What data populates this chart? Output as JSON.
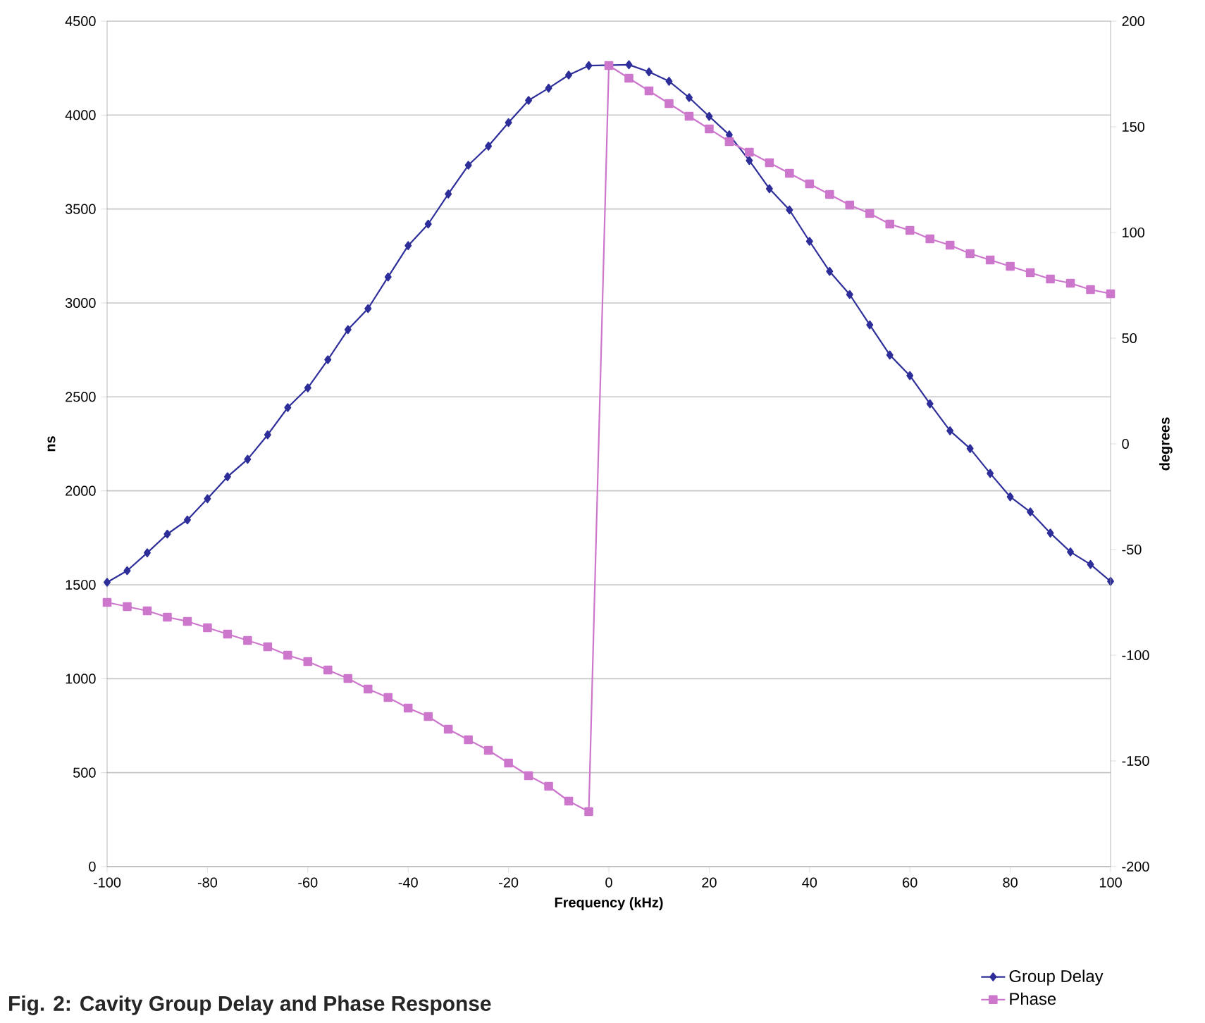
{
  "chart_data": {
    "type": "line",
    "xlabel": "Frequency (kHz)",
    "ylabel": "ns",
    "y2label": "degrees",
    "annotations": [
      "Fig. 2: Cavity Group Delay and Phase Response"
    ],
    "x": [
      -100,
      -96,
      -92,
      -88,
      -84,
      -80,
      -76,
      -72,
      -68,
      -64,
      -60,
      -56,
      -52,
      -48,
      -44,
      -40,
      -36,
      -32,
      -28,
      -24,
      -20,
      -16,
      -12,
      -8,
      -4,
      0,
      4,
      8,
      12,
      16,
      20,
      24,
      28,
      32,
      36,
      40,
      44,
      48,
      52,
      56,
      60,
      64,
      68,
      72,
      76,
      80,
      84,
      88,
      92,
      96,
      100
    ],
    "series": [
      {
        "name": "Group Delay",
        "color": "#2e2e9a",
        "marker": "diamond",
        "values": [
          1513,
          1575,
          1670,
          1770,
          1845,
          1958,
          2075,
          2168,
          2298,
          2443,
          2548,
          2698,
          2858,
          2970,
          3138,
          3305,
          3420,
          3580,
          3733,
          3835,
          3960,
          4078,
          4143,
          4213,
          4263,
          null,
          4268,
          4230,
          4180,
          4093,
          3993,
          3895,
          3758,
          3608,
          3495,
          3328,
          3168,
          3045,
          2883,
          2723,
          2613,
          2463,
          2320,
          2225,
          2093,
          1968,
          1888,
          1775,
          1675,
          1608,
          1518
        ]
      },
      {
        "name": "Phase",
        "color": "#cc77cc",
        "marker": "square",
        "axis": "y2",
        "values": [
          -75,
          -77,
          -79,
          -82,
          -84,
          -87,
          -90,
          -93,
          -96,
          -100,
          -103,
          -107,
          -111,
          -116,
          -120,
          -125,
          -129,
          -135,
          -140,
          -145,
          -151,
          -157,
          -162,
          -169,
          -174,
          179,
          173,
          167,
          161,
          155,
          149,
          143,
          138,
          133,
          128,
          123,
          118,
          113,
          109,
          104,
          101,
          97,
          94,
          90,
          87,
          84,
          81,
          78,
          76,
          73,
          71
        ]
      }
    ],
    "xlim": [
      -100,
      100
    ],
    "xticks": [
      -100,
      -80,
      -60,
      -40,
      -20,
      0,
      20,
      40,
      60,
      80,
      100
    ],
    "ylim": [
      0,
      4500
    ],
    "yticks": [
      0,
      500,
      1000,
      1500,
      2000,
      2500,
      3000,
      3500,
      4000,
      4500
    ],
    "y2lim": [
      -200,
      200
    ],
    "y2ticks": [
      -200,
      -150,
      -100,
      -50,
      0,
      50,
      100,
      150,
      200
    ],
    "grid": "y",
    "legend": "bottom right",
    "line_style": "solid"
  }
}
